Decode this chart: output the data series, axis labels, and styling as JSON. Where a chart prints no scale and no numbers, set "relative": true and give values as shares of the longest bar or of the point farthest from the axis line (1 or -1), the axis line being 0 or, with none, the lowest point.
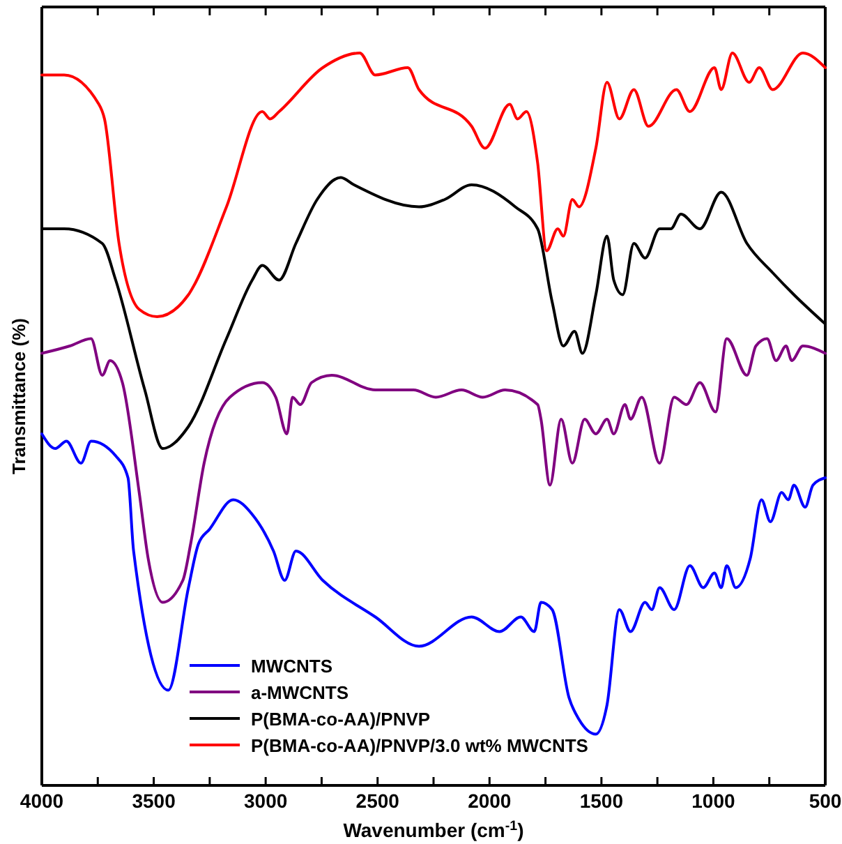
{
  "chart_data": {
    "type": "line",
    "xlabel": "Wavenumber (cm$^{-1}$)",
    "ylabel": "Transmittance (%)",
    "relative": true,
    "xlim": [
      4000,
      500
    ],
    "xticks": [
      4000,
      {
        "value": 3750,
        "label": null
      },
      3500,
      {
        "value": 3250,
        "label": null
      },
      3000,
      {
        "value": 2750,
        "label": null
      },
      2500,
      {
        "value": 2250,
        "label": null
      },
      2000,
      {
        "value": 1750,
        "label": null
      },
      1500,
      {
        "value": 1250,
        "label": null
      },
      1000,
      {
        "value": 750,
        "label": null
      },
      500
    ],
    "legend": "bottom left",
    "line_style": "solid",
    "series": [
      {
        "name": "MWCNTS",
        "color": "#0000ff",
        "x": [
          4000,
          3940,
          3890,
          3825,
          3780,
          3670,
          3615,
          3590,
          3435,
          3345,
          3300,
          3250,
          3145,
          3060,
          2965,
          2915,
          2865,
          2745,
          2510,
          2315,
          2080,
          1955,
          1860,
          1800,
          1770,
          1720,
          1645,
          1600,
          1525,
          1475,
          1420,
          1370,
          1305,
          1275,
          1240,
          1175,
          1105,
          1045,
          995,
          965,
          940,
          900,
          835,
          785,
          745,
          695,
          665,
          640,
          590,
          555,
          500
        ],
        "values": [
          0.48,
          0.46,
          0.47,
          0.44,
          0.47,
          0.45,
          0.42,
          0.32,
          0.13,
          0.27,
          0.33,
          0.35,
          0.39,
          0.37,
          0.32,
          0.28,
          0.32,
          0.28,
          0.23,
          0.19,
          0.23,
          0.21,
          0.23,
          0.21,
          0.25,
          0.24,
          0.12,
          0.09,
          0.07,
          0.11,
          0.24,
          0.21,
          0.25,
          0.24,
          0.27,
          0.24,
          0.3,
          0.27,
          0.29,
          0.27,
          0.3,
          0.27,
          0.31,
          0.39,
          0.36,
          0.4,
          0.39,
          0.41,
          0.38,
          0.41,
          0.42
        ]
      },
      {
        "name": "a-MWCNTS",
        "color": "#800080",
        "x": [
          4000,
          3875,
          3780,
          3730,
          3695,
          3640,
          3565,
          3525,
          3460,
          3370,
          3335,
          3275,
          3160,
          3015,
          2955,
          2905,
          2880,
          2845,
          2795,
          2705,
          2510,
          2340,
          2240,
          2125,
          2030,
          1930,
          1785,
          1770,
          1730,
          1680,
          1630,
          1575,
          1525,
          1475,
          1445,
          1395,
          1370,
          1320,
          1240,
          1175,
          1120,
          1060,
          990,
          940,
          850,
          810,
          760,
          720,
          675,
          650,
          600,
          500
        ],
        "values": [
          0.59,
          0.6,
          0.61,
          0.56,
          0.58,
          0.55,
          0.4,
          0.31,
          0.25,
          0.28,
          0.33,
          0.44,
          0.53,
          0.55,
          0.53,
          0.48,
          0.53,
          0.52,
          0.55,
          0.56,
          0.54,
          0.54,
          0.53,
          0.54,
          0.53,
          0.54,
          0.52,
          0.5,
          0.41,
          0.5,
          0.44,
          0.5,
          0.48,
          0.5,
          0.48,
          0.52,
          0.5,
          0.53,
          0.44,
          0.53,
          0.52,
          0.55,
          0.51,
          0.61,
          0.56,
          0.6,
          0.61,
          0.58,
          0.6,
          0.58,
          0.6,
          0.59
        ]
      },
      {
        "name": "P(BMA-co-AA)/PNVP",
        "color": "#000000",
        "x": [
          4000,
          3900,
          3730,
          3670,
          3540,
          3460,
          3345,
          3175,
          3060,
          3015,
          2940,
          2865,
          2770,
          2665,
          2605,
          2315,
          2200,
          2080,
          1885,
          1785,
          1720,
          1670,
          1620,
          1585,
          1525,
          1475,
          1445,
          1405,
          1355,
          1305,
          1240,
          1190,
          1145,
          1060,
          965,
          850,
          735,
          640,
          500
        ],
        "values": [
          0.76,
          0.76,
          0.74,
          0.69,
          0.54,
          0.46,
          0.49,
          0.61,
          0.69,
          0.71,
          0.69,
          0.74,
          0.8,
          0.83,
          0.82,
          0.79,
          0.8,
          0.82,
          0.79,
          0.76,
          0.66,
          0.6,
          0.62,
          0.59,
          0.67,
          0.75,
          0.69,
          0.67,
          0.74,
          0.72,
          0.76,
          0.76,
          0.78,
          0.76,
          0.81,
          0.74,
          0.7,
          0.67,
          0.63
        ]
      },
      {
        "name": "P(BMA-co-AA)/PNVP/3.0 wt% MWCNTS",
        "color": "#ff0000",
        "x": [
          4000,
          3900,
          3745,
          3720,
          3655,
          3565,
          3485,
          3345,
          3325,
          3175,
          3015,
          2980,
          2940,
          2745,
          2580,
          2510,
          2365,
          2315,
          2080,
          2020,
          1910,
          1875,
          1835,
          1785,
          1745,
          1695,
          1670,
          1630,
          1600,
          1525,
          1475,
          1420,
          1355,
          1290,
          1165,
          1105,
          995,
          965,
          915,
          840,
          795,
          735,
          600,
          500
        ],
        "values": [
          0.97,
          0.97,
          0.93,
          0.91,
          0.74,
          0.65,
          0.64,
          0.67,
          0.68,
          0.79,
          0.92,
          0.91,
          0.92,
          0.98,
          1.0,
          0.97,
          0.98,
          0.95,
          0.9,
          0.87,
          0.93,
          0.91,
          0.92,
          0.85,
          0.73,
          0.76,
          0.75,
          0.8,
          0.79,
          0.87,
          0.96,
          0.91,
          0.95,
          0.9,
          0.95,
          0.92,
          0.98,
          0.95,
          1.0,
          0.96,
          0.98,
          0.95,
          1.0,
          0.98
        ]
      }
    ]
  }
}
